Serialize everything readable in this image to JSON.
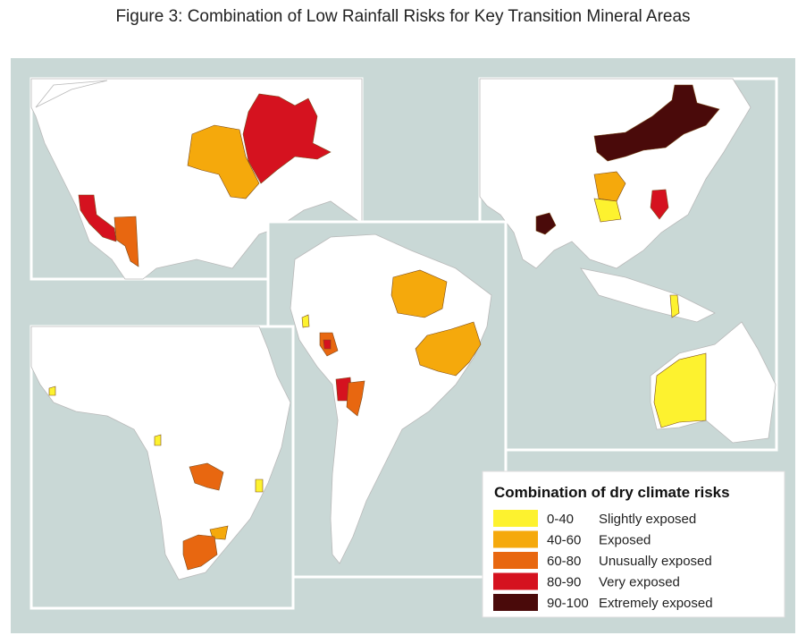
{
  "title": "Figure 3: Combination of Low Rainfall Risks for Key Transition Mineral Areas",
  "legend": {
    "title": "Combination of dry climate risks",
    "items": [
      {
        "range": "0-40",
        "label": "Slightly exposed",
        "color": "#fdf22f"
      },
      {
        "range": "40-60",
        "label": "Exposed",
        "color": "#f5a90c"
      },
      {
        "range": "60-80",
        "label": "Unusually exposed",
        "color": "#e86710"
      },
      {
        "range": "80-90",
        "label": "Very exposed",
        "color": "#d5121f"
      },
      {
        "range": "90-100",
        "label": "Extremely exposed",
        "color": "#4a0a0a"
      }
    ]
  }
}
